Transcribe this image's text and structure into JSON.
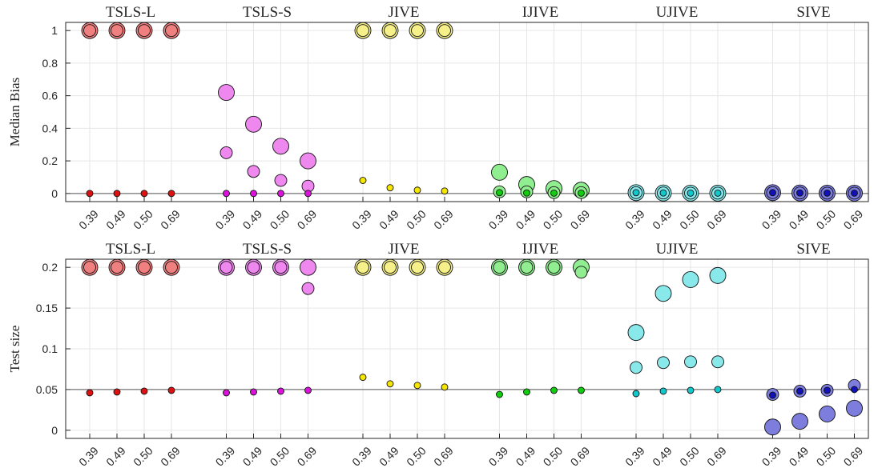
{
  "chart_data": [
    {
      "type": "scatter",
      "ylabel": "Median Bias",
      "ylim": [
        -0.05,
        1.05
      ],
      "yticks": [
        0,
        0.2,
        0.4,
        0.6,
        0.8,
        1
      ],
      "ytick_labels": [
        "0",
        "0.2",
        "0.4",
        "0.6",
        "0.8",
        "1"
      ],
      "hline": 0,
      "grid": true,
      "groups": [
        {
          "name": "TSLS-L",
          "color": "#f08080",
          "dark_color": "#dd1111",
          "x_labels": [
            "0.39",
            "0.49",
            "0.50",
            "0.69"
          ],
          "points": [
            {
              "y": [
                1.0,
                1.0,
                1.0,
                1.0
              ],
              "marker": "large-ring"
            },
            {
              "y": [
                1.0,
                1.0,
                1.0,
                1.0
              ],
              "marker": "medium"
            },
            {
              "y": [
                0,
                0,
                0,
                0
              ],
              "marker": "small-dark"
            }
          ]
        },
        {
          "name": "TSLS-S",
          "color": "#ee88ee",
          "dark_color": "#dd11dd",
          "x_labels": [
            "0.39",
            "0.49",
            "0.50",
            "0.69"
          ],
          "points": [
            {
              "y": [
                0.62,
                0.425,
                0.29,
                0.2
              ],
              "marker": "large"
            },
            {
              "y": [
                0.25,
                0.135,
                0.08,
                0.045
              ],
              "marker": "medium"
            },
            {
              "y": [
                0,
                0,
                0,
                0
              ],
              "marker": "small-dark"
            }
          ]
        },
        {
          "name": "JIVE",
          "color": "#f5f08a",
          "dark_color": "#f5e600",
          "x_labels": [
            "0.39",
            "0.49",
            "0.50",
            "0.69"
          ],
          "points": [
            {
              "y": [
                1.0,
                1.0,
                1.0,
                1.0
              ],
              "marker": "large-ring"
            },
            {
              "y": [
                1.0,
                1.0,
                1.0,
                1.0
              ],
              "marker": "medium"
            },
            {
              "y": [
                0.08,
                0.035,
                0.02,
                0.015
              ],
              "marker": "small-dark"
            }
          ]
        },
        {
          "name": "IJIVE",
          "color": "#90ee90",
          "dark_color": "#11cc11",
          "x_labels": [
            "0.39",
            "0.49",
            "0.50",
            "0.69"
          ],
          "points": [
            {
              "y": [
                0.13,
                0.055,
                0.03,
                0.02
              ],
              "marker": "large"
            },
            {
              "y": [
                0.01,
                0.01,
                0.005,
                0.005
              ],
              "marker": "medium"
            },
            {
              "y": [
                0.005,
                0.003,
                0.002,
                0.002
              ],
              "marker": "small-dark"
            }
          ]
        },
        {
          "name": "UJIVE",
          "color": "#88e8ea",
          "dark_color": "#11c8cc",
          "x_labels": [
            "0.39",
            "0.49",
            "0.50",
            "0.69"
          ],
          "points": [
            {
              "y": [
                0.005,
                0.003,
                0.002,
                0.002
              ],
              "marker": "large"
            },
            {
              "y": [
                0.005,
                0.003,
                0.002,
                0.002
              ],
              "marker": "medium"
            },
            {
              "y": [
                0.005,
                0.003,
                0.002,
                0.002
              ],
              "marker": "small-dark"
            }
          ]
        },
        {
          "name": "SIVE",
          "color": "#7d7ddd",
          "dark_color": "#1111bb",
          "x_labels": [
            "0.39",
            "0.49",
            "0.50",
            "0.69"
          ],
          "points": [
            {
              "y": [
                0.005,
                0.003,
                0.002,
                0.002
              ],
              "marker": "large"
            },
            {
              "y": [
                0.005,
                0.003,
                0.002,
                0.002
              ],
              "marker": "medium"
            },
            {
              "y": [
                0.005,
                0.003,
                0.002,
                0.002
              ],
              "marker": "small-dark"
            }
          ]
        }
      ]
    },
    {
      "type": "scatter",
      "ylabel": "Test size",
      "ylim": [
        -0.01,
        0.21
      ],
      "yticks": [
        0,
        0.05,
        0.1,
        0.15,
        0.2
      ],
      "ytick_labels": [
        "0",
        "0.05",
        "0.1",
        "0.15",
        "0.2"
      ],
      "hline": 0.05,
      "grid": true,
      "groups": [
        {
          "name": "TSLS-L",
          "color": "#f08080",
          "dark_color": "#dd1111",
          "x_labels": [
            "0.39",
            "0.49",
            "0.50",
            "0.69"
          ],
          "points": [
            {
              "y": [
                0.2,
                0.2,
                0.2,
                0.2
              ],
              "marker": "large-ring"
            },
            {
              "y": [
                0.2,
                0.2,
                0.2,
                0.2
              ],
              "marker": "medium"
            },
            {
              "y": [
                0.046,
                0.047,
                0.048,
                0.049
              ],
              "marker": "small-dark"
            }
          ]
        },
        {
          "name": "TSLS-S",
          "color": "#ee88ee",
          "dark_color": "#dd11dd",
          "x_labels": [
            "0.39",
            "0.49",
            "0.50",
            "0.69"
          ],
          "points": [
            {
              "y": [
                0.2,
                0.2,
                0.2,
                0.2
              ],
              "marker": "large-ring"
            },
            {
              "y": [
                0.2,
                0.2,
                0.2,
                0.174
              ],
              "marker": "medium"
            },
            {
              "y": [
                0.046,
                0.047,
                0.048,
                0.049
              ],
              "marker": "small-dark"
            }
          ]
        },
        {
          "name": "JIVE",
          "color": "#f5f08a",
          "dark_color": "#f5e600",
          "x_labels": [
            "0.39",
            "0.49",
            "0.50",
            "0.69"
          ],
          "points": [
            {
              "y": [
                0.2,
                0.2,
                0.2,
                0.2
              ],
              "marker": "large-ring"
            },
            {
              "y": [
                0.2,
                0.2,
                0.2,
                0.2
              ],
              "marker": "medium"
            },
            {
              "y": [
                0.065,
                0.057,
                0.055,
                0.053
              ],
              "marker": "small-dark"
            }
          ]
        },
        {
          "name": "IJIVE",
          "color": "#90ee90",
          "dark_color": "#11cc11",
          "x_labels": [
            "0.39",
            "0.49",
            "0.50",
            "0.69"
          ],
          "points": [
            {
              "y": [
                0.2,
                0.2,
                0.2,
                0.2
              ],
              "marker": "large-ring"
            },
            {
              "y": [
                0.2,
                0.2,
                0.2,
                0.194
              ],
              "marker": "medium"
            },
            {
              "y": [
                0.044,
                0.047,
                0.049,
                0.049
              ],
              "marker": "small-dark"
            }
          ]
        },
        {
          "name": "UJIVE",
          "color": "#88e8ea",
          "dark_color": "#11c8cc",
          "x_labels": [
            "0.39",
            "0.49",
            "0.50",
            "0.69"
          ],
          "points": [
            {
              "y": [
                0.12,
                0.168,
                0.185,
                0.19
              ],
              "marker": "large"
            },
            {
              "y": [
                0.077,
                0.083,
                0.084,
                0.084
              ],
              "marker": "medium"
            },
            {
              "y": [
                0.045,
                0.048,
                0.049,
                0.05
              ],
              "marker": "small-dark"
            }
          ]
        },
        {
          "name": "SIVE",
          "color": "#7d7ddd",
          "dark_color": "#1111bb",
          "x_labels": [
            "0.39",
            "0.49",
            "0.50",
            "0.69"
          ],
          "points": [
            {
              "y": [
                0.004,
                0.011,
                0.02,
                0.027
              ],
              "marker": "large"
            },
            {
              "y": [
                0.044,
                0.048,
                0.049,
                0.055
              ],
              "marker": "medium"
            },
            {
              "y": [
                0.043,
                0.048,
                0.049,
                0.05
              ],
              "marker": "small-dark"
            }
          ]
        }
      ]
    }
  ]
}
